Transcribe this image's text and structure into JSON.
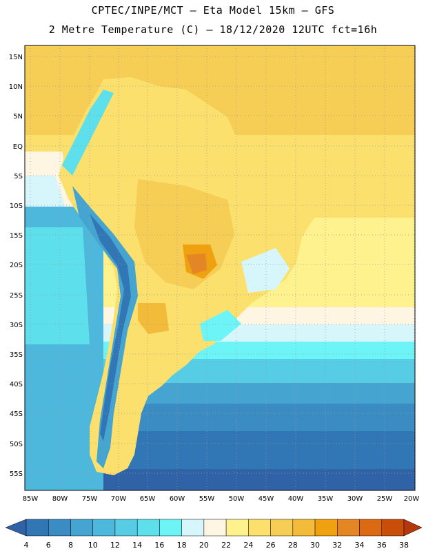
{
  "header": {
    "title_line1": "CPTEC/INPE/MCT –  Eta Model 15km – GFS",
    "title_line2": "2 Metre Temperature (C) – 18/12/2020 12UTC fct=16h"
  },
  "map": {
    "lat_labels": [
      "15N",
      "10N",
      "5N",
      "EQ",
      "5S",
      "10S",
      "15S",
      "20S",
      "25S",
      "30S",
      "35S",
      "40S",
      "45S",
      "50S",
      "55S"
    ],
    "lon_labels": [
      "85W",
      "80W",
      "75W",
      "70W",
      "65W",
      "60W",
      "55W",
      "50W",
      "45W",
      "40W",
      "35W",
      "30W",
      "25W",
      "20W"
    ]
  },
  "colorbar": {
    "labels": [
      "4",
      "6",
      "8",
      "10",
      "12",
      "14",
      "16",
      "18",
      "20",
      "22",
      "24",
      "26",
      "28",
      "30",
      "32",
      "34",
      "36",
      "38"
    ],
    "colors": [
      "#2f62a6",
      "#3277b5",
      "#3a8cc3",
      "#45a4d0",
      "#4db8dc",
      "#56cde5",
      "#5ee0ec",
      "#6cf4f7",
      "#d7f6fb",
      "#fff5e3",
      "#fef28f",
      "#fbe06d",
      "#f6cd55",
      "#f2bb3a",
      "#efa10f",
      "#e58624",
      "#dc6a12",
      "#c84e0a",
      "#b4380c"
    ]
  }
}
